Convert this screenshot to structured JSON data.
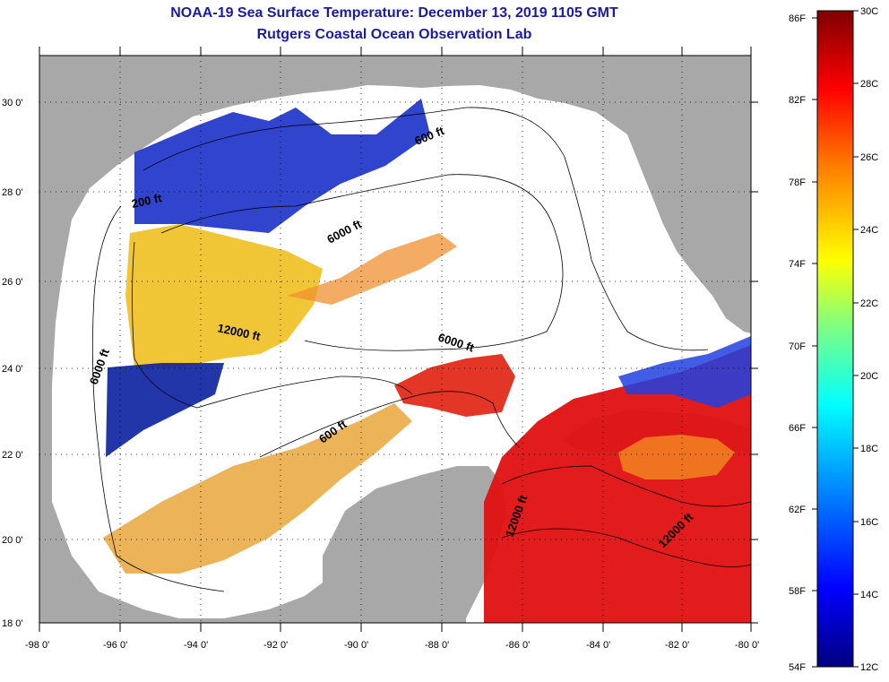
{
  "title": "NOAA-19 Sea Surface Temperature:  December 13, 2019 1105 GMT",
  "subtitle": "Rutgers Coastal Ocean Observation Lab",
  "map": {
    "lon_range": [
      -98,
      -80
    ],
    "lat_range": [
      18,
      31
    ],
    "lon_ticks": [
      "-98 0'",
      "-96 0'",
      "-94 0'",
      "-92 0'",
      "-90 0'",
      "-88 0'",
      "-86 0'",
      "-84 0'",
      "-82 0'",
      "-80 0'"
    ],
    "lat_ticks": [
      "18 0'",
      "20 0'",
      "22 0'",
      "24 0'",
      "26 0'",
      "28 0'",
      "30 0'"
    ],
    "contour_labels": [
      "600 ft",
      "200 ft",
      "6000 ft",
      "12000 ft",
      "6000 ft",
      "6000 ft",
      "600 ft",
      "12000 ft",
      "12000 ft"
    ],
    "land_color": "#a8a8a8",
    "ocean_nodata_color": "#ffffff"
  },
  "colorbar": {
    "fahrenheit_labels": [
      "86F",
      "82F",
      "78F",
      "74F",
      "70F",
      "66F",
      "62F",
      "58F",
      "54F"
    ],
    "celsius_labels": [
      "30C",
      "28C",
      "26C",
      "24C",
      "22C",
      "20C",
      "18C",
      "16C",
      "14C",
      "12C"
    ],
    "colors": [
      "#00007f",
      "#0000ff",
      "#0080ff",
      "#00ffff",
      "#80ff80",
      "#ffff00",
      "#ff8000",
      "#ff0000",
      "#7f0000"
    ]
  }
}
